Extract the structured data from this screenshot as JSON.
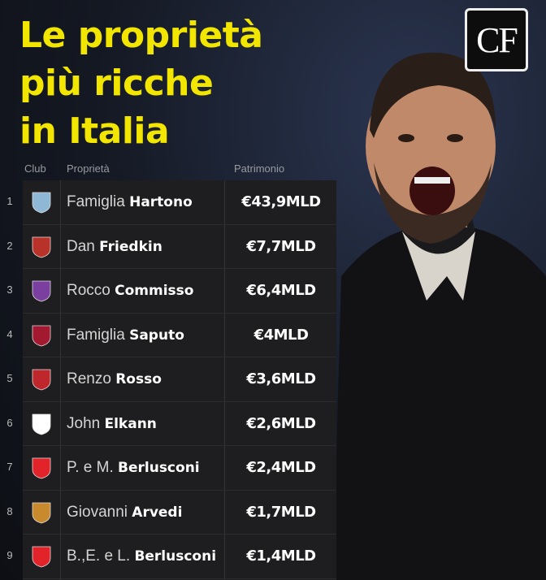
{
  "title_lines": [
    "Le proprietà",
    "più ricche",
    "in Italia"
  ],
  "logo_text": "CF",
  "headers": {
    "club": "Club",
    "owner": "Proprietà",
    "wealth": "Patrimonio"
  },
  "accent": "#f2e600",
  "rows": [
    {
      "rank": "1",
      "first": "Famiglia",
      "last": "Hartono",
      "value": "€43,9MLD",
      "crest_color": "#8fb7d6"
    },
    {
      "rank": "2",
      "first": "Dan",
      "last": "Friedkin",
      "value": "€7,7MLD",
      "crest_color": "#b8322a"
    },
    {
      "rank": "3",
      "first": "Rocco",
      "last": "Commisso",
      "value": "€6,4MLD",
      "crest_color": "#7b3fa0"
    },
    {
      "rank": "4",
      "first": "Famiglia",
      "last": "Saputo",
      "value": "€4MLD",
      "crest_color": "#a3192f"
    },
    {
      "rank": "5",
      "first": "Renzo",
      "last": "Rosso",
      "value": "€3,6MLD",
      "crest_color": "#c0272d"
    },
    {
      "rank": "6",
      "first": "John",
      "last": "Elkann",
      "value": "€2,6MLD",
      "crest_color": "#ffffff"
    },
    {
      "rank": "7",
      "first": "P. e M.",
      "last": "Berlusconi",
      "value": "€2,4MLD",
      "crest_color": "#e2232a"
    },
    {
      "rank": "8",
      "first": "Giovanni",
      "last": "Arvedi",
      "value": "€1,7MLD",
      "crest_color": "#c88a2c"
    },
    {
      "rank": "9",
      "first": "B.,E. e L.",
      "last": "Berlusconi",
      "value": "€1,4MLD",
      "crest_color": "#e2232a"
    }
  ]
}
